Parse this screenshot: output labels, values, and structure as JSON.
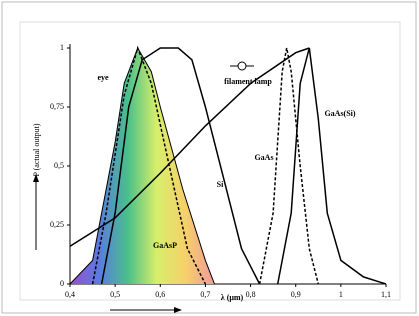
{
  "chart_data": {
    "type": "line",
    "ylabel": "P (actual output)",
    "xlabel": "λ (μm)",
    "xlim": [
      0.4,
      1.1
    ],
    "ylim": [
      0,
      1
    ],
    "xticks": [
      {
        "value": 0.4,
        "label": "0,4"
      },
      {
        "value": 0.5,
        "label": "0,5"
      },
      {
        "value": 0.6,
        "label": "0,6"
      },
      {
        "value": 0.7,
        "label": "0,7"
      },
      {
        "value": 0.8,
        "label": "0,8"
      },
      {
        "value": 0.9,
        "label": "0,9"
      },
      1,
      {
        "value": 1.1,
        "label": "1,1"
      }
    ],
    "yticks": [
      0,
      {
        "value": 0.25,
        "label": "0,25"
      },
      {
        "value": 0.5,
        "label": "0,5"
      },
      {
        "value": 0.75,
        "label": "0,75"
      },
      1
    ],
    "series": [
      {
        "name": "eye",
        "color": "#000000",
        "dash": false,
        "x": [
          0.4,
          0.45,
          0.5,
          0.52,
          0.55,
          0.58,
          0.6,
          0.65,
          0.7,
          0.72
        ],
        "values": [
          0,
          0.1,
          0.6,
          0.85,
          1,
          0.9,
          0.75,
          0.4,
          0.1,
          0
        ]
      },
      {
        "name": "GaAsP",
        "color": "#000000",
        "dash": true,
        "x": [
          0.45,
          0.48,
          0.52,
          0.55,
          0.58,
          0.62,
          0.66,
          0.7
        ],
        "values": [
          0,
          0.3,
          0.8,
          1,
          0.85,
          0.5,
          0.15,
          0
        ]
      },
      {
        "name": "Si",
        "color": "#000000",
        "dash": false,
        "x": [
          0.47,
          0.5,
          0.53,
          0.56,
          0.6,
          0.64,
          0.67,
          0.7,
          0.74,
          0.78,
          0.82
        ],
        "values": [
          0,
          0.3,
          0.75,
          0.95,
          1,
          1,
          0.95,
          0.75,
          0.45,
          0.15,
          0
        ]
      },
      {
        "name": "filament lamp",
        "color": "#000000",
        "dash": false,
        "x": [
          0.4,
          0.5,
          0.6,
          0.7,
          0.8,
          0.9,
          0.93
        ],
        "values": [
          0.16,
          0.28,
          0.47,
          0.67,
          0.85,
          0.98,
          1
        ]
      },
      {
        "name": "GaAs",
        "color": "#000000",
        "dash": true,
        "x": [
          0.82,
          0.85,
          0.87,
          0.88,
          0.89,
          0.91,
          0.93,
          0.95
        ],
        "values": [
          0,
          0.3,
          0.9,
          1,
          0.9,
          0.5,
          0.15,
          0
        ]
      },
      {
        "name": "GaAs(Si)",
        "color": "#000000",
        "dash": false,
        "x": [
          0.86,
          0.89,
          0.91,
          0.93,
          0.95,
          0.97,
          1.0,
          1.05,
          1.1
        ],
        "values": [
          0,
          0.3,
          0.85,
          1,
          0.7,
          0.3,
          0.1,
          0.03,
          0
        ]
      }
    ]
  }
}
